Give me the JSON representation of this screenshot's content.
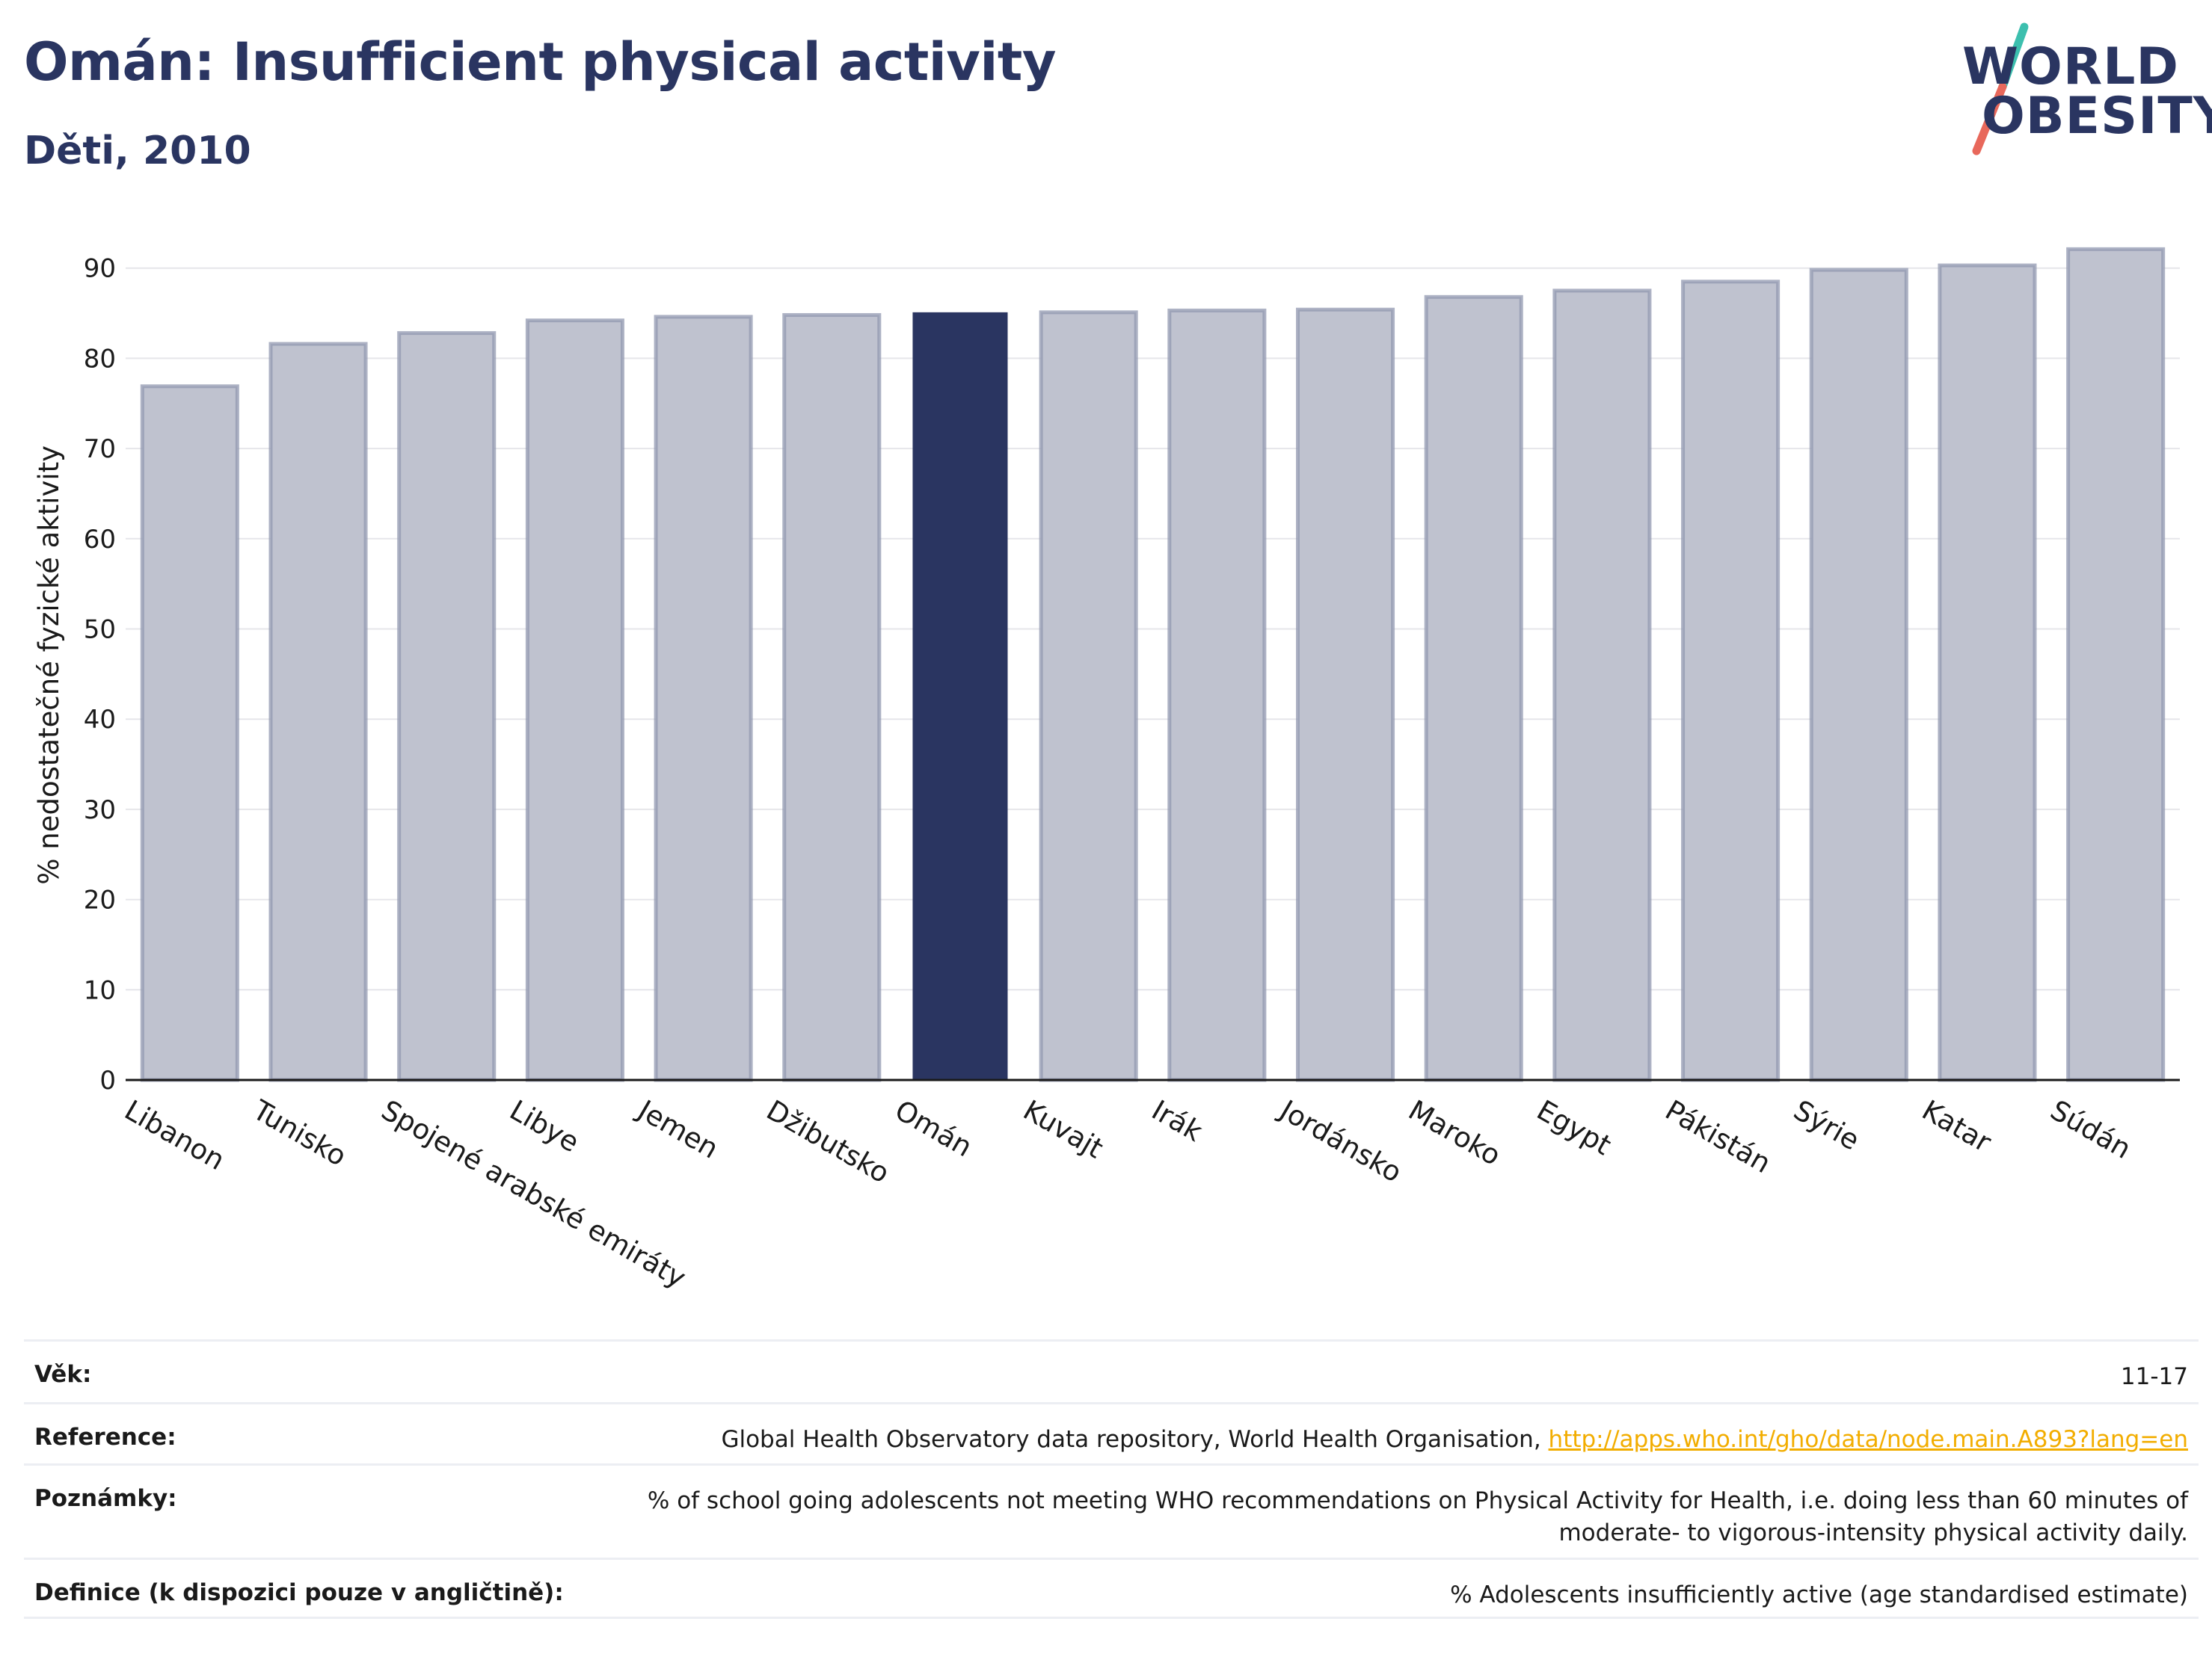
{
  "header": {
    "title": "Omán: Insufficient physical activity",
    "subtitle": "Děti, 2010"
  },
  "logo": {
    "line1": "WORLD",
    "line2": "OBESITY",
    "slash_colors": [
      "#3cbfae",
      "#e8685b"
    ]
  },
  "chart_data": {
    "type": "bar",
    "title": "",
    "xlabel": "",
    "ylabel": "% nedostatečné fyzické aktivity",
    "ylim": [
      0,
      92
    ],
    "yticks": [
      0,
      10,
      20,
      30,
      40,
      50,
      60,
      70,
      80,
      90
    ],
    "grid": true,
    "categories": [
      "Libanon",
      "Tunisko",
      "Spojené arabské emiráty",
      "Libye",
      "Jemen",
      "Džibutsko",
      "Omán",
      "Kuvajt",
      "Irák",
      "Jordánsko",
      "Maroko",
      "Egypt",
      "Pákistán",
      "Sýrie",
      "Katar",
      "Súdán"
    ],
    "values": [
      76.9,
      81.6,
      82.8,
      84.2,
      84.6,
      84.8,
      85.1,
      85.1,
      85.3,
      85.4,
      86.8,
      87.5,
      88.5,
      89.8,
      90.3,
      92.1
    ],
    "highlight": "Omán",
    "colors": {
      "bar": "#bfc2cf",
      "bar_border": "#9298b0",
      "highlight": "#2a3561"
    }
  },
  "info": [
    {
      "key": "Věk:",
      "value": "11-17"
    },
    {
      "key": "Reference:",
      "value": "Global Health Observatory data repository, World Health Organisation,",
      "link": "http://apps.who.int/gho/data/node.main.A893?lang=en"
    },
    {
      "key": "Poznámky:",
      "value": "% of school going adolescents not meeting WHO recommendations on Physical Activity for Health, i.e. doing less than 60 minutes of moderate- to vigorous-intensity physical activity daily."
    },
    {
      "key": "Definice (k dispozici pouze v angličtině):",
      "value": "% Adolescents insufficiently active (age standardised estimate)"
    }
  ]
}
